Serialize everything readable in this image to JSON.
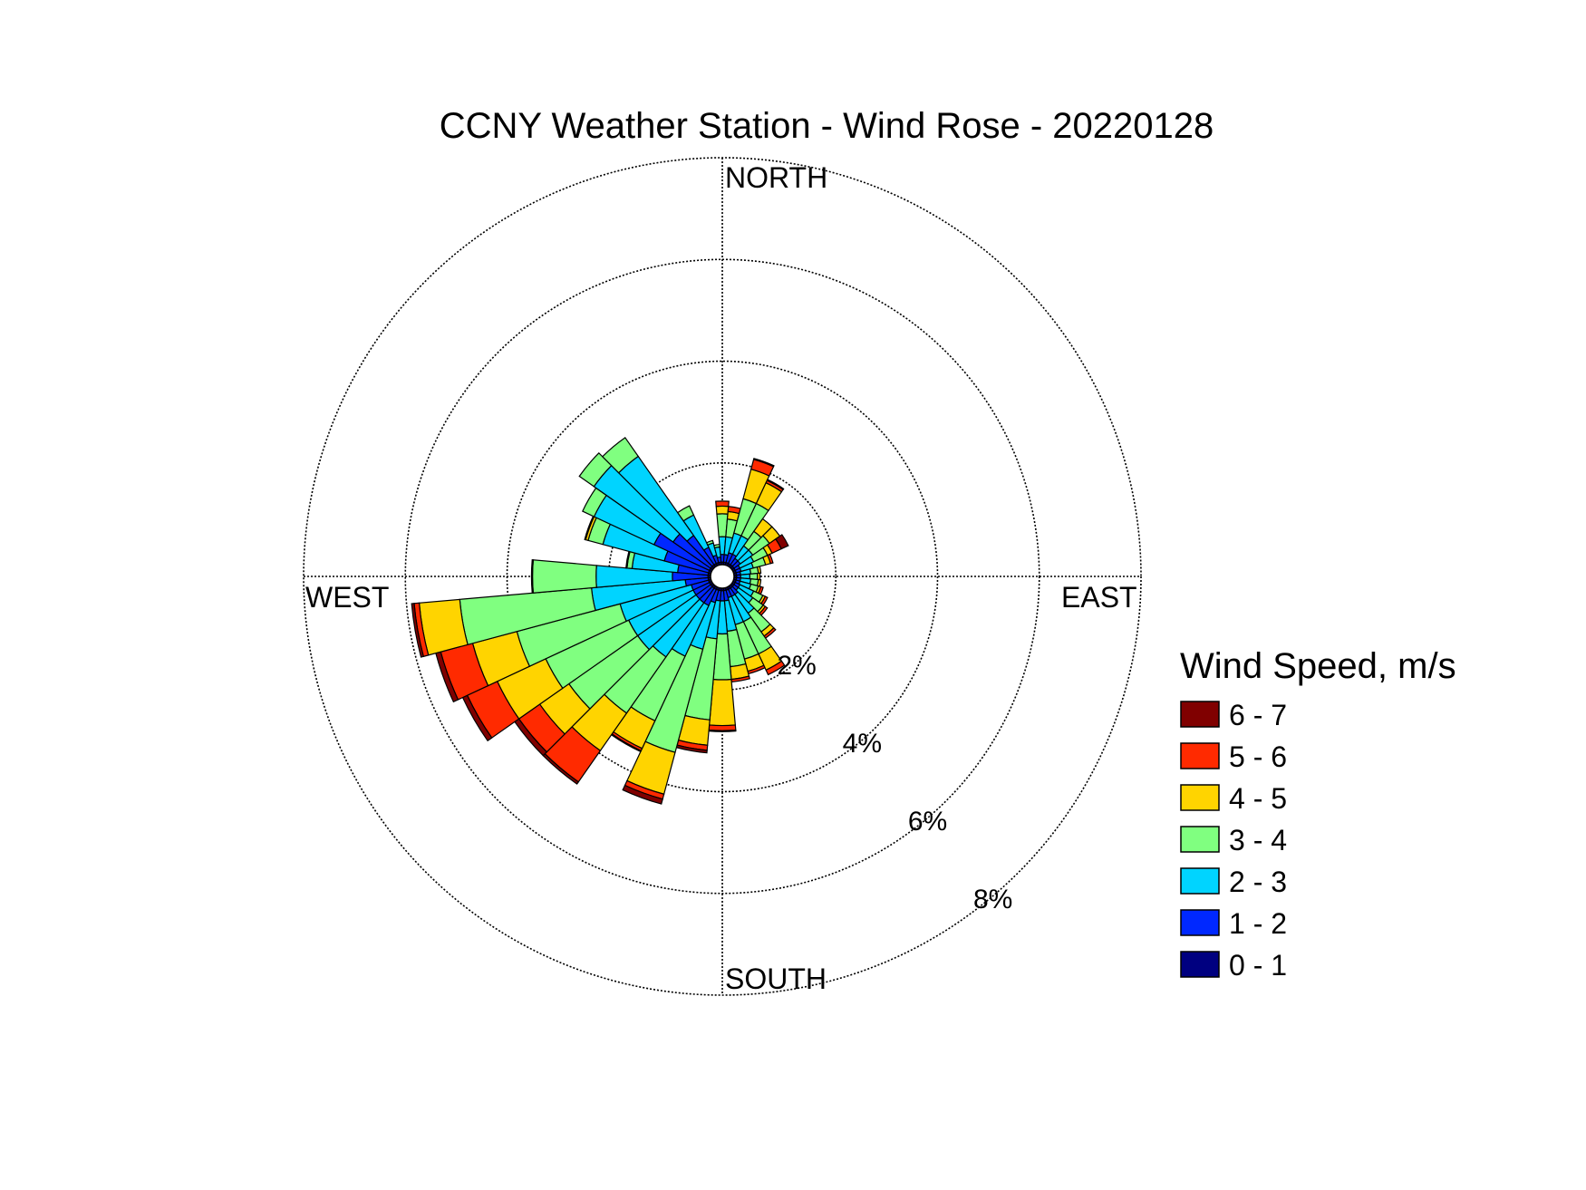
{
  "chart_data": {
    "type": "windrose",
    "title": "CCNY Weather Station - Wind Rose - 20220128",
    "direction_labels": {
      "north": "NORTH",
      "east": "EAST",
      "south": "SOUTH",
      "west": "WEST"
    },
    "ring_values": [
      2,
      4,
      6,
      8
    ],
    "ring_labels": [
      "2%",
      "4%",
      "6%",
      "8%"
    ],
    "radial_max": 8,
    "legend": {
      "title": "Wind Speed, m/s",
      "placement": "right",
      "bins": [
        {
          "label": "6 - 7",
          "color": "#800000"
        },
        {
          "label": "5 - 6",
          "color": "#FF2A00"
        },
        {
          "label": "4 - 5",
          "color": "#FFD400"
        },
        {
          "label": "3 - 4",
          "color": "#80FF80"
        },
        {
          "label": "2 - 3",
          "color": "#00D4FF"
        },
        {
          "label": "1 - 2",
          "color": "#0028FF"
        },
        {
          "label": "0 - 1",
          "color": "#000080"
        }
      ]
    },
    "sector_width_deg": 10,
    "series_order": [
      "0 - 1",
      "1 - 2",
      "2 - 3",
      "3 - 4",
      "4 - 5",
      "5 - 6",
      "6 - 7"
    ],
    "sectors": [
      {
        "dir": 0,
        "values": [
          0.05,
          0.15,
          0.35,
          0.45,
          0.15,
          0.1,
          0.0
        ]
      },
      {
        "dir": 10,
        "values": [
          0.05,
          0.15,
          0.35,
          0.35,
          0.15,
          0.1,
          0.0
        ]
      },
      {
        "dir": 20,
        "values": [
          0.05,
          0.2,
          0.4,
          0.7,
          0.6,
          0.2,
          0.02
        ]
      },
      {
        "dir": 30,
        "values": [
          0.05,
          0.2,
          0.4,
          0.7,
          0.45,
          0.05,
          0.02
        ]
      },
      {
        "dir": 40,
        "values": [
          0.05,
          0.15,
          0.3,
          0.35,
          0.3,
          0.0,
          0.0
        ]
      },
      {
        "dir": 50,
        "values": [
          0.05,
          0.15,
          0.3,
          0.4,
          0.25,
          0.0,
          0.0
        ]
      },
      {
        "dir": 60,
        "values": [
          0.05,
          0.1,
          0.3,
          0.3,
          0.1,
          0.2,
          0.15
        ]
      },
      {
        "dir": 70,
        "values": [
          0.05,
          0.1,
          0.25,
          0.25,
          0.1,
          0.05,
          0.0
        ]
      },
      {
        "dir": 80,
        "values": [
          0.05,
          0.08,
          0.2,
          0.15,
          0.05,
          0.0,
          0.0
        ]
      },
      {
        "dir": 90,
        "values": [
          0.05,
          0.08,
          0.18,
          0.15,
          0.05,
          0.0,
          0.0
        ]
      },
      {
        "dir": 100,
        "values": [
          0.05,
          0.08,
          0.2,
          0.15,
          0.05,
          0.0,
          0.0
        ]
      },
      {
        "dir": 110,
        "values": [
          0.05,
          0.08,
          0.22,
          0.15,
          0.05,
          0.05,
          0.0
        ]
      },
      {
        "dir": 120,
        "values": [
          0.05,
          0.1,
          0.3,
          0.2,
          0.05,
          0.05,
          0.0
        ]
      },
      {
        "dir": 130,
        "values": [
          0.05,
          0.1,
          0.35,
          0.25,
          0.05,
          0.05,
          0.0
        ]
      },
      {
        "dir": 140,
        "values": [
          0.05,
          0.15,
          0.45,
          0.45,
          0.1,
          0.05,
          0.0
        ]
      },
      {
        "dir": 150,
        "values": [
          0.05,
          0.15,
          0.55,
          0.7,
          0.35,
          0.1,
          0.0
        ]
      },
      {
        "dir": 160,
        "values": [
          0.05,
          0.15,
          0.55,
          0.7,
          0.25,
          0.05,
          0.0
        ]
      },
      {
        "dir": 170,
        "values": [
          0.05,
          0.2,
          0.6,
          0.7,
          0.25,
          0.05,
          0.0
        ]
      },
      {
        "dir": 180,
        "values": [
          0.05,
          0.2,
          0.65,
          0.9,
          0.9,
          0.1,
          0.02
        ]
      },
      {
        "dir": 190,
        "values": [
          0.05,
          0.2,
          0.75,
          1.6,
          0.5,
          0.1,
          0.05
        ]
      },
      {
        "dir": 200,
        "values": [
          0.05,
          0.25,
          0.95,
          2.1,
          0.85,
          0.1,
          0.1
        ]
      },
      {
        "dir": 210,
        "values": [
          0.05,
          0.35,
          1.1,
          1.4,
          0.6,
          0.05,
          0.02
        ]
      },
      {
        "dir": 220,
        "values": [
          0.05,
          0.35,
          1.3,
          1.35,
          0.9,
          0.75,
          0.05
        ]
      },
      {
        "dir": 230,
        "values": [
          0.05,
          0.35,
          1.4,
          1.65,
          0.7,
          0.5,
          0.1
        ]
      },
      {
        "dir": 240,
        "values": [
          0.05,
          0.35,
          1.4,
          1.8,
          1.05,
          0.65,
          0.1
        ]
      },
      {
        "dir": 250,
        "values": [
          0.05,
          0.35,
          1.45,
          2.1,
          0.9,
          0.65,
          0.1
        ]
      },
      {
        "dir": 260,
        "values": [
          0.05,
          0.45,
          1.85,
          2.6,
          0.8,
          0.1,
          0.05
        ]
      },
      {
        "dir": 270,
        "values": [
          0.05,
          0.7,
          1.5,
          1.25,
          0.02,
          0.0,
          0.0
        ]
      },
      {
        "dir": 280,
        "values": [
          0.05,
          0.6,
          0.9,
          0.1,
          0.02,
          0.0,
          0.0
        ]
      },
      {
        "dir": 290,
        "values": [
          0.05,
          0.9,
          1.25,
          0.3,
          0.05,
          0.0,
          0.02
        ]
      },
      {
        "dir": 300,
        "values": [
          0.05,
          1.2,
          1.3,
          0.25,
          0.0,
          0.0,
          0.0
        ]
      },
      {
        "dir": 310,
        "values": [
          0.05,
          0.9,
          1.9,
          0.35,
          0.0,
          0.0,
          0.0
        ]
      },
      {
        "dir": 320,
        "values": [
          0.05,
          0.7,
          1.9,
          0.45,
          0.0,
          0.0,
          0.0
        ]
      },
      {
        "dir": 330,
        "values": [
          0.05,
          0.35,
          0.7,
          0.2,
          0.0,
          0.0,
          0.0
        ]
      },
      {
        "dir": 340,
        "values": [
          0.05,
          0.15,
          0.25,
          0.05,
          0.0,
          0.0,
          0.0
        ]
      },
      {
        "dir": 350,
        "values": [
          0.05,
          0.1,
          0.2,
          0.05,
          0.0,
          0.0,
          0.0
        ]
      }
    ]
  }
}
